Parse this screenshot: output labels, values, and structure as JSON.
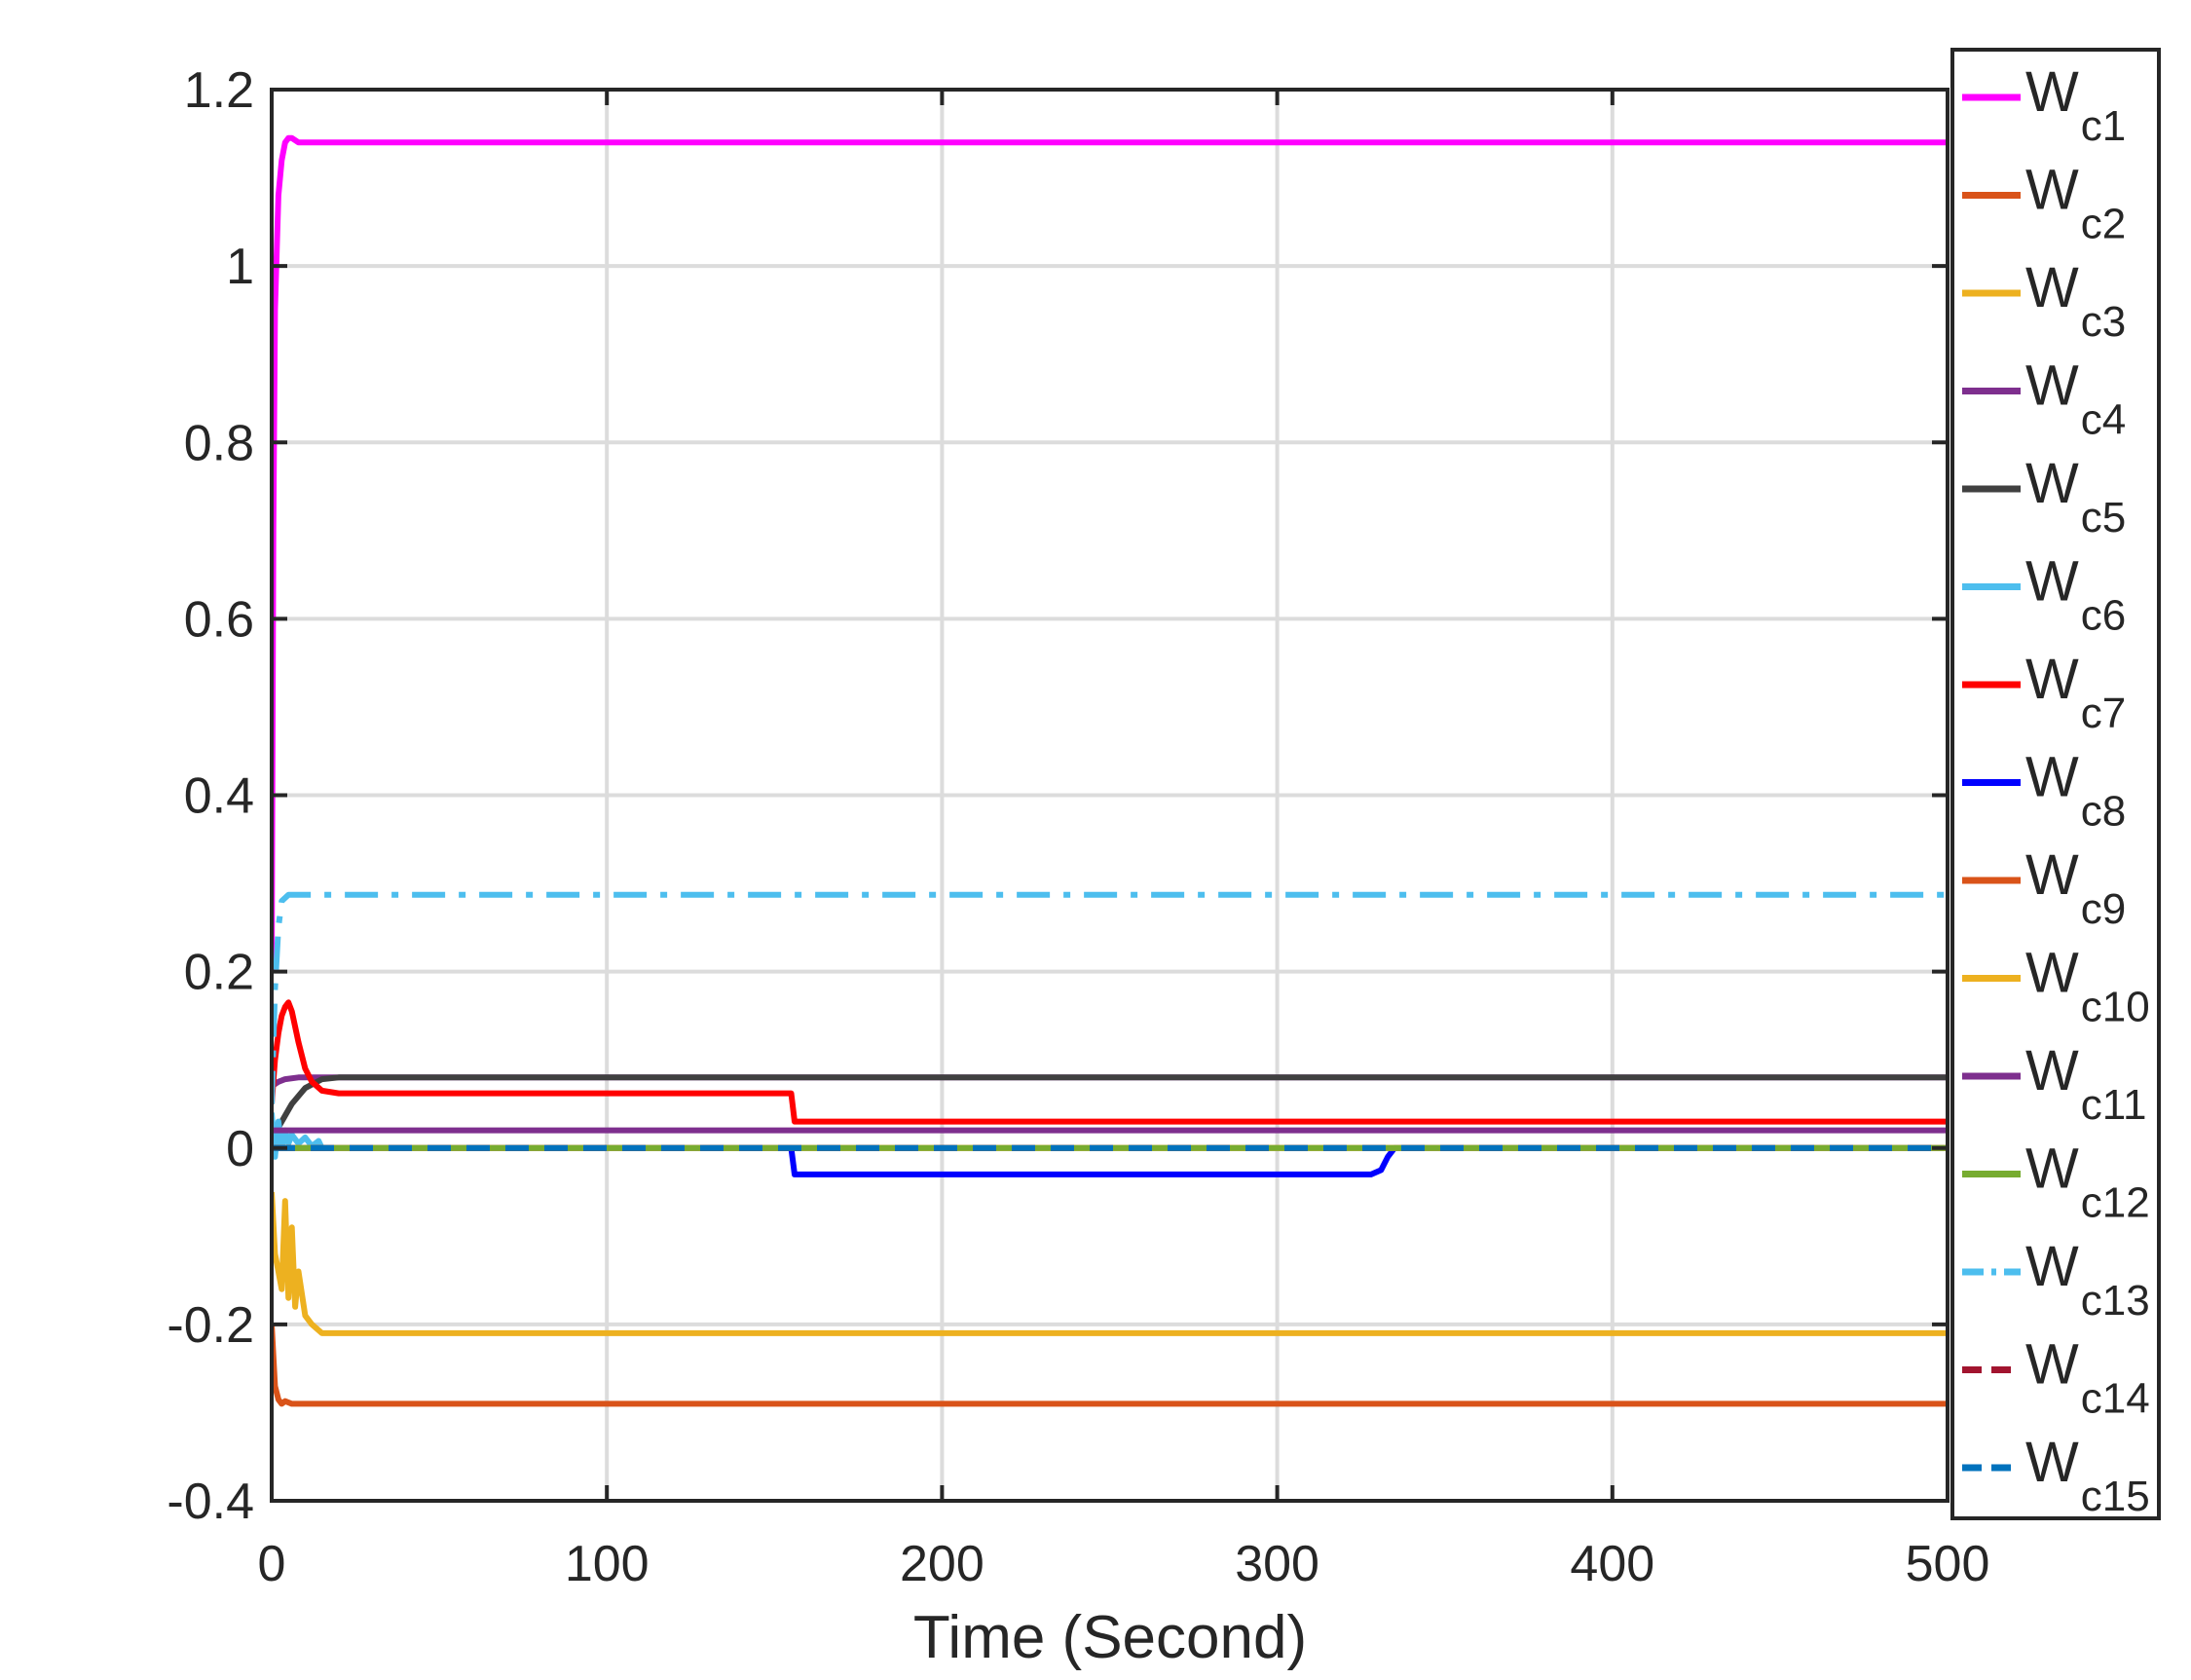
{
  "chart_data": {
    "type": "line",
    "title": "",
    "xlabel": "Time (Second)",
    "ylabel": "",
    "xlim": [
      0,
      500
    ],
    "ylim": [
      -0.4,
      1.2
    ],
    "xticks": [
      0,
      100,
      200,
      300,
      400,
      500
    ],
    "xtick_labels": [
      "0",
      "100",
      "200",
      "300",
      "400",
      "500"
    ],
    "yticks": [
      -0.4,
      -0.2,
      0,
      0.2,
      0.4,
      0.6,
      0.8,
      1,
      1.2
    ],
    "ytick_labels": [
      "-0.4",
      "-0.2",
      "0",
      "0.2",
      "0.4",
      "0.6",
      "0.8",
      "1",
      "1.2"
    ],
    "grid": true,
    "legend_position": "right",
    "series": [
      {
        "name": "W",
        "sub": "c1",
        "color": "#ff00ff",
        "dash": "solid",
        "points": [
          [
            0,
            0.2
          ],
          [
            0.5,
            0.7
          ],
          [
            1,
            0.95
          ],
          [
            2,
            1.08
          ],
          [
            3,
            1.12
          ],
          [
            4,
            1.14
          ],
          [
            5,
            1.145
          ],
          [
            6,
            1.145
          ],
          [
            8,
            1.14
          ],
          [
            500,
            1.14
          ]
        ]
      },
      {
        "name": "W",
        "sub": "c2",
        "color": "#d95319",
        "dash": "solid",
        "points": [
          [
            0,
            -0.2
          ],
          [
            1,
            -0.27
          ],
          [
            2,
            -0.285
          ],
          [
            3,
            -0.29
          ],
          [
            4,
            -0.287
          ],
          [
            6,
            -0.29
          ],
          [
            500,
            -0.29
          ]
        ]
      },
      {
        "name": "W",
        "sub": "c3",
        "color": "#edb120",
        "dash": "solid",
        "points": [
          [
            0,
            -0.05
          ],
          [
            1,
            -0.12
          ],
          [
            2,
            -0.14
          ],
          [
            3,
            -0.16
          ],
          [
            4,
            -0.06
          ],
          [
            5,
            -0.17
          ],
          [
            6,
            -0.09
          ],
          [
            7,
            -0.18
          ],
          [
            8,
            -0.14
          ],
          [
            10,
            -0.19
          ],
          [
            12,
            -0.2
          ],
          [
            15,
            -0.21
          ],
          [
            500,
            -0.21
          ]
        ]
      },
      {
        "name": "W",
        "sub": "c4",
        "color": "#7e2f8e",
        "dash": "solid",
        "points": [
          [
            0,
            0.07
          ],
          [
            2,
            0.075
          ],
          [
            4,
            0.078
          ],
          [
            8,
            0.08
          ],
          [
            500,
            0.08
          ]
        ]
      },
      {
        "name": "W",
        "sub": "c5",
        "color": "#404040",
        "dash": "solid",
        "points": [
          [
            0,
            0.01
          ],
          [
            3,
            0.03
          ],
          [
            6,
            0.05
          ],
          [
            10,
            0.068
          ],
          [
            15,
            0.078
          ],
          [
            20,
            0.08
          ],
          [
            500,
            0.08
          ]
        ]
      },
      {
        "name": "W",
        "sub": "c6",
        "color": "#4dbeee",
        "dash": "solid",
        "points": [
          [
            0,
            0.04
          ],
          [
            1,
            -0.01
          ],
          [
            2,
            0.03
          ],
          [
            3,
            0.0
          ],
          [
            4,
            0.02
          ],
          [
            5,
            0.005
          ],
          [
            6,
            0.015
          ],
          [
            8,
            0.005
          ],
          [
            10,
            0.012
          ],
          [
            12,
            0.002
          ],
          [
            14,
            0.008
          ],
          [
            15,
            0.0
          ],
          [
            16,
            0.0
          ]
        ]
      },
      {
        "name": "W",
        "sub": "c7",
        "color": "#ff0000",
        "dash": "solid",
        "points": [
          [
            0,
            0.05
          ],
          [
            1,
            0.1
          ],
          [
            2,
            0.13
          ],
          [
            3,
            0.15
          ],
          [
            4,
            0.16
          ],
          [
            5,
            0.165
          ],
          [
            6,
            0.155
          ],
          [
            8,
            0.12
          ],
          [
            10,
            0.09
          ],
          [
            12,
            0.075
          ],
          [
            15,
            0.065
          ],
          [
            20,
            0.062
          ],
          [
            155,
            0.062
          ],
          [
            156,
            0.03
          ],
          [
            500,
            0.03
          ]
        ]
      },
      {
        "name": "W",
        "sub": "c8",
        "color": "#0000ff",
        "dash": "solid",
        "points": [
          [
            0,
            0
          ],
          [
            155,
            0
          ],
          [
            156,
            -0.03
          ],
          [
            328,
            -0.03
          ],
          [
            331,
            -0.025
          ],
          [
            333,
            -0.01
          ],
          [
            335,
            0
          ],
          [
            500,
            0
          ]
        ]
      },
      {
        "name": "W",
        "sub": "c9",
        "color": "#d95319",
        "dash": "solid",
        "points": [
          [
            0,
            0
          ],
          [
            500,
            0
          ]
        ]
      },
      {
        "name": "W",
        "sub": "c10",
        "color": "#edb120",
        "dash": "solid",
        "points": [
          [
            0,
            0
          ],
          [
            500,
            0
          ]
        ]
      },
      {
        "name": "W",
        "sub": "c11",
        "color": "#7e2f8e",
        "dash": "solid",
        "points": [
          [
            0,
            0.02
          ],
          [
            500,
            0.02
          ]
        ]
      },
      {
        "name": "W",
        "sub": "c12",
        "color": "#77ac30",
        "dash": "solid",
        "points": [
          [
            0,
            0
          ],
          [
            500,
            0
          ]
        ]
      },
      {
        "name": "W",
        "sub": "c13",
        "color": "#4dbeee",
        "dash": "dashdot",
        "points": [
          [
            0,
            0.05
          ],
          [
            1,
            0.18
          ],
          [
            2,
            0.25
          ],
          [
            3,
            0.28
          ],
          [
            5,
            0.287
          ],
          [
            8,
            0.287
          ],
          [
            500,
            0.287
          ]
        ]
      },
      {
        "name": "W",
        "sub": "c14",
        "color": "#a2142f",
        "dash": "dashed",
        "points": [
          [
            0,
            0
          ],
          [
            500,
            0
          ]
        ]
      },
      {
        "name": "W",
        "sub": "c15",
        "color": "#0072bd",
        "dash": "dashed",
        "points": [
          [
            0,
            0
          ],
          [
            500,
            0
          ]
        ]
      }
    ]
  }
}
